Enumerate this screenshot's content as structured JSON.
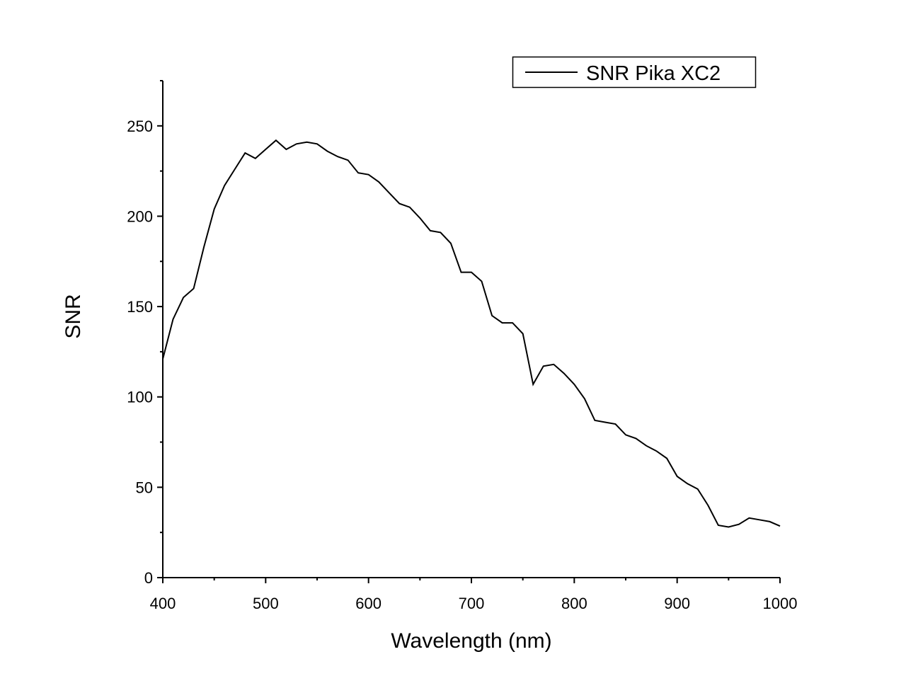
{
  "chart_data": {
    "type": "line",
    "title": "",
    "xlabel": "Wavelength (nm)",
    "ylabel": "SNR",
    "xlim": [
      400,
      1000
    ],
    "ylim": [
      0,
      275
    ],
    "xticks": [
      400,
      500,
      600,
      700,
      800,
      900,
      1000
    ],
    "yticks": [
      0,
      50,
      100,
      150,
      200,
      250
    ],
    "grid": false,
    "legend_position": "top-right",
    "series": [
      {
        "name": "SNR Pika XC2",
        "color": "#000000",
        "x": [
          400,
          410,
          420,
          430,
          440,
          450,
          460,
          470,
          480,
          490,
          500,
          510,
          520,
          530,
          540,
          550,
          560,
          570,
          580,
          590,
          600,
          610,
          620,
          630,
          640,
          650,
          660,
          670,
          680,
          690,
          700,
          710,
          720,
          730,
          740,
          750,
          760,
          770,
          780,
          790,
          800,
          810,
          820,
          830,
          840,
          850,
          860,
          870,
          880,
          890,
          900,
          910,
          920,
          930,
          940,
          950,
          960,
          970,
          980,
          990,
          1000
        ],
        "y": [
          121,
          143,
          155,
          160,
          183,
          204,
          217,
          226,
          235,
          232,
          237,
          242,
          237,
          240,
          241,
          240,
          236,
          233,
          231,
          224,
          223,
          219,
          213,
          207,
          205,
          199,
          192,
          191,
          185,
          169,
          169,
          164,
          145,
          141,
          141,
          135,
          107,
          117,
          118,
          113,
          107,
          99,
          87,
          86,
          85,
          79,
          77,
          73,
          70,
          66,
          56,
          52,
          49,
          40,
          29,
          28,
          29.5,
          33,
          32,
          31,
          28.5
        ]
      }
    ]
  }
}
